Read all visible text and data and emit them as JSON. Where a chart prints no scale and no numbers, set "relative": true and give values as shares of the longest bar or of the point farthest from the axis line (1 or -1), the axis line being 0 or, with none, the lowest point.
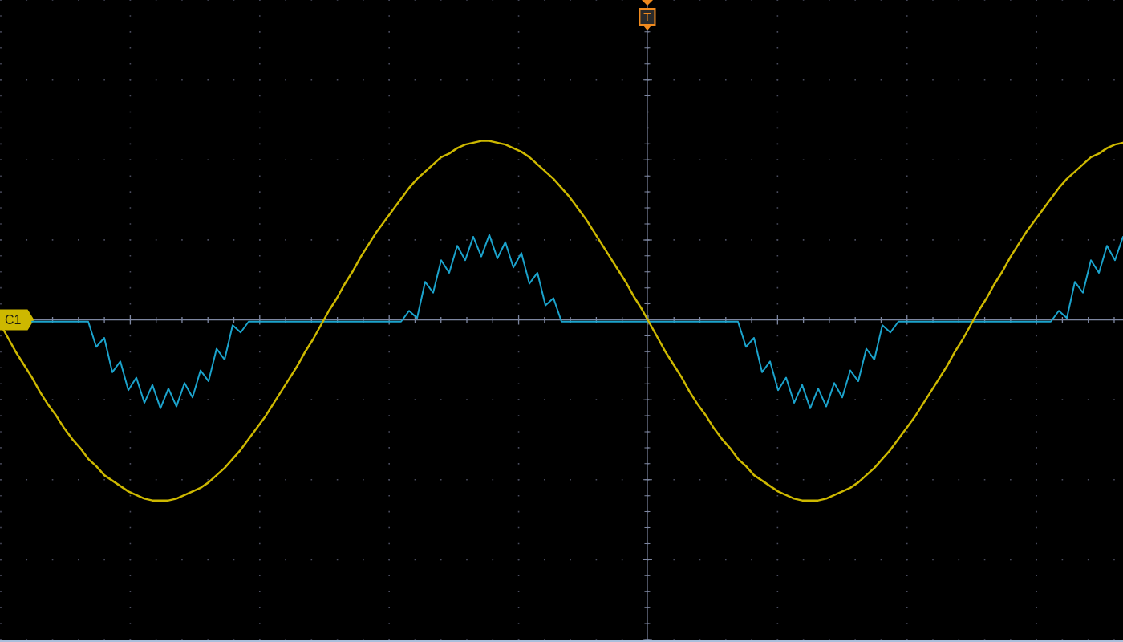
{
  "chart_data": {
    "type": "line",
    "relative": true,
    "categories": [
      null,
      null,
      null,
      null,
      null,
      null,
      null,
      null,
      null,
      null,
      null,
      null,
      null,
      null,
      null,
      null,
      null,
      null,
      null,
      null,
      null,
      null,
      null,
      null,
      null,
      null,
      null,
      null,
      null,
      null,
      null,
      null,
      null,
      null,
      null,
      null,
      null,
      null,
      null,
      null,
      null,
      null,
      null,
      null,
      null,
      null,
      null,
      null,
      null,
      null,
      null,
      null,
      null,
      null,
      null,
      null,
      null,
      null,
      null,
      null,
      null,
      null,
      null,
      null,
      null,
      null,
      null,
      null,
      null,
      null,
      null,
      null,
      null,
      null,
      null,
      null,
      null,
      null,
      null,
      null,
      null,
      null,
      null,
      null,
      null,
      null,
      null,
      null,
      null,
      null,
      null,
      null,
      null,
      null,
      null,
      null,
      null,
      null,
      null,
      null,
      null,
      null,
      null,
      null,
      null,
      null,
      null,
      null,
      null,
      null,
      null,
      null,
      null,
      null,
      null,
      null,
      null,
      null,
      null,
      null,
      null,
      null,
      null,
      null,
      null,
      null,
      null,
      null,
      null,
      null,
      null,
      null,
      null,
      null,
      null,
      null,
      null,
      null,
      null,
      null,
      null
    ],
    "series": [
      {
        "name": "C1",
        "color": "#cdb800",
        "values": [
          -0.02,
          -0.1,
          -0.18,
          -0.25,
          -0.32,
          -0.4,
          -0.47,
          -0.53,
          -0.6,
          -0.66,
          -0.71,
          -0.77,
          -0.81,
          -0.86,
          -0.89,
          -0.92,
          -0.95,
          -0.97,
          -0.99,
          -1.0,
          -1.0,
          -1.0,
          -0.99,
          -0.97,
          -0.95,
          -0.93,
          -0.9,
          -0.86,
          -0.82,
          -0.77,
          -0.72,
          -0.66,
          -0.6,
          -0.54,
          -0.47,
          -0.4,
          -0.33,
          -0.26,
          -0.18,
          -0.11,
          -0.03,
          0.05,
          0.12,
          0.2,
          0.27,
          0.35,
          0.42,
          0.49,
          0.55,
          0.61,
          0.67,
          0.73,
          0.78,
          0.82,
          0.86,
          0.9,
          0.92,
          0.95,
          0.97,
          0.98,
          0.99,
          0.99,
          0.98,
          0.97,
          0.95,
          0.93,
          0.9,
          0.86,
          0.82,
          0.78,
          0.73,
          0.68,
          0.62,
          0.56,
          0.49,
          0.42,
          0.35,
          0.28,
          0.21,
          0.13,
          0.06,
          -0.02,
          -0.1,
          -0.18,
          -0.25,
          -0.32,
          -0.4,
          -0.47,
          -0.53,
          -0.6,
          -0.66,
          -0.71,
          -0.77,
          -0.81,
          -0.86,
          -0.89,
          -0.92,
          -0.95,
          -0.97,
          -0.99,
          -1.0,
          -1.0,
          -1.0,
          -0.99,
          -0.97,
          -0.95,
          -0.93,
          -0.9,
          -0.86,
          -0.82,
          -0.77,
          -0.72,
          -0.66,
          -0.6,
          -0.54,
          -0.47,
          -0.4,
          -0.33,
          -0.26,
          -0.18,
          -0.11,
          -0.03,
          0.05,
          0.12,
          0.2,
          0.27,
          0.35,
          0.42,
          0.49,
          0.55,
          0.61,
          0.67,
          0.73,
          0.78,
          0.82,
          0.86,
          0.9,
          0.92,
          0.95,
          0.97,
          0.98
        ]
      },
      {
        "color": "#1ba3cc",
        "values": [
          null,
          null,
          null,
          null,
          -0.01,
          -0.01,
          -0.01,
          -0.01,
          -0.01,
          -0.01,
          -0.01,
          -0.01,
          -0.15,
          -0.1,
          -0.29,
          -0.23,
          -0.39,
          -0.32,
          -0.46,
          -0.36,
          -0.49,
          -0.38,
          -0.48,
          -0.35,
          -0.43,
          -0.28,
          -0.34,
          -0.16,
          -0.22,
          -0.03,
          -0.07,
          -0.01,
          -0.01,
          -0.01,
          -0.01,
          -0.01,
          -0.01,
          -0.01,
          -0.01,
          -0.01,
          -0.01,
          -0.01,
          -0.01,
          -0.01,
          -0.01,
          -0.01,
          -0.01,
          -0.01,
          -0.01,
          -0.01,
          -0.01,
          0.05,
          0.01,
          0.21,
          0.15,
          0.33,
          0.26,
          0.41,
          0.33,
          0.46,
          0.35,
          0.47,
          0.34,
          0.43,
          0.29,
          0.37,
          0.2,
          0.26,
          0.08,
          0.12,
          -0.01,
          -0.01,
          -0.01,
          -0.01,
          -0.01,
          -0.01,
          -0.01,
          -0.01,
          -0.01,
          -0.01,
          -0.01,
          -0.01,
          -0.01,
          -0.01,
          -0.01,
          -0.01,
          -0.01,
          -0.01,
          -0.01,
          -0.01,
          -0.01,
          -0.01,
          -0.01,
          -0.15,
          -0.1,
          -0.29,
          -0.23,
          -0.39,
          -0.32,
          -0.46,
          -0.36,
          -0.49,
          -0.38,
          -0.48,
          -0.35,
          -0.43,
          -0.28,
          -0.34,
          -0.16,
          -0.22,
          -0.03,
          -0.07,
          -0.01,
          -0.01,
          -0.01,
          -0.01,
          -0.01,
          -0.01,
          -0.01,
          -0.01,
          -0.01,
          -0.01,
          -0.01,
          -0.01,
          -0.01,
          -0.01,
          -0.01,
          -0.01,
          -0.01,
          -0.01,
          -0.01,
          -0.01,
          0.05,
          0.01,
          0.21,
          0.15,
          0.33,
          0.26,
          0.41,
          0.33,
          0.46
        ]
      }
    ],
    "annotations": [
      "T"
    ],
    "grid": true,
    "marker": "none"
  }
}
